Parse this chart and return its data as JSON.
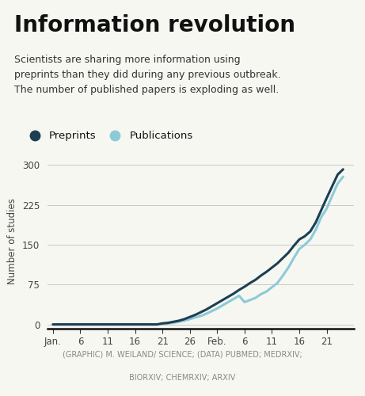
{
  "title": "Information revolution",
  "subtitle": "Scientists are sharing more information using\npreprints than they did during any previous outbreak.\nThe number of published papers is exploding as well.",
  "caption_line1": "(GRAPHIC) M. WEILAND/ SCIENCE; (DATA) PUBMED; MEDRXIV;",
  "caption_line2": "BIORXIV; CHEMRXIV; ARXIV",
  "ylabel": "Number of studies",
  "legend": [
    "Preprints",
    "Publications"
  ],
  "preprint_color": "#1c3f52",
  "publication_color": "#8dcad8",
  "background_color": "#f7f7f2",
  "yticks": [
    0,
    75,
    150,
    225,
    300
  ],
  "ylim": [
    -8,
    320
  ],
  "xtick_labels": [
    "Jan.",
    "6",
    "11",
    "16",
    "21",
    "26",
    "Feb.",
    "6",
    "11",
    "16",
    "21"
  ],
  "xtick_positions": [
    0,
    5,
    10,
    15,
    20,
    25,
    30,
    35,
    40,
    45,
    50
  ],
  "xlim": [
    -1,
    55
  ],
  "preprints_y": [
    0,
    0,
    0,
    0,
    0,
    0,
    0,
    0,
    0,
    0,
    0,
    0,
    0,
    0,
    0,
    0,
    0,
    0,
    0,
    0,
    2,
    3,
    5,
    7,
    10,
    14,
    18,
    23,
    28,
    34,
    40,
    46,
    52,
    58,
    65,
    71,
    78,
    84,
    92,
    99,
    107,
    115,
    125,
    135,
    148,
    160,
    166,
    175,
    192,
    215,
    238,
    260,
    282,
    292
  ],
  "publications_y": [
    0,
    0,
    0,
    0,
    0,
    0,
    0,
    0,
    0,
    0,
    0,
    0,
    0,
    0,
    0,
    0,
    0,
    0,
    0,
    0,
    1,
    2,
    3,
    5,
    7,
    10,
    13,
    16,
    20,
    25,
    30,
    36,
    42,
    48,
    54,
    42,
    46,
    50,
    57,
    62,
    70,
    78,
    92,
    107,
    125,
    142,
    150,
    160,
    178,
    202,
    218,
    242,
    265,
    278
  ]
}
